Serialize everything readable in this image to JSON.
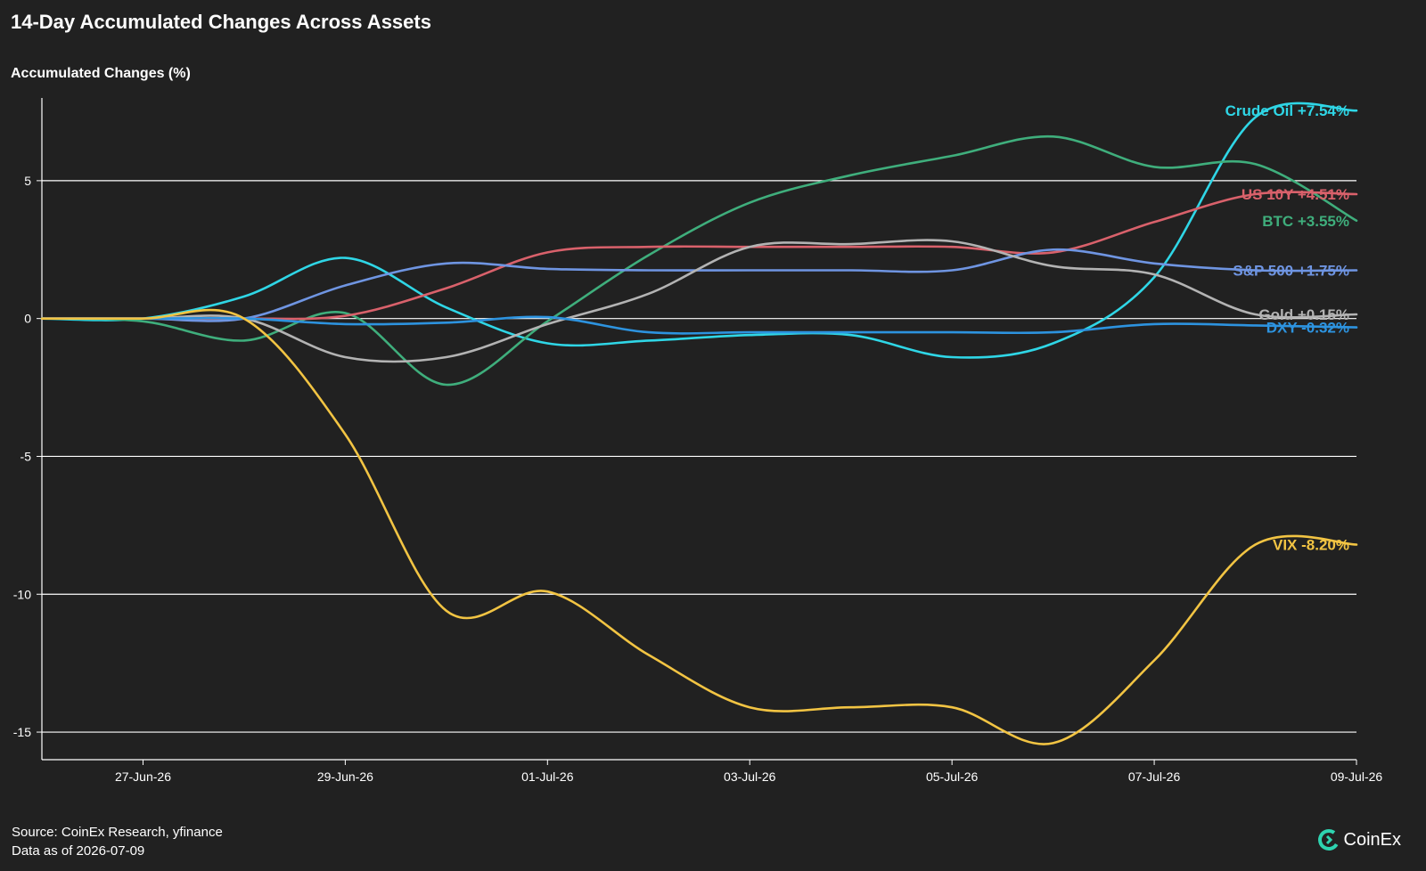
{
  "title": "14-Day Accumulated Changes Across Assets",
  "footer": {
    "source": "Source: CoinEx Research, yfinance",
    "asof": "Data as of 2026-07-09"
  },
  "brand": {
    "name": "CoinEx",
    "color": "#2ED3B0",
    "icon": "coinex-logo-icon"
  },
  "colors": {
    "background": "#212121",
    "grid": "#ffffff",
    "axis": "#ffffff"
  },
  "chart_data": {
    "type": "line",
    "ylabel": "Accumulated Changes (%)",
    "xlabel": "",
    "x_dates": [
      "26-Jun-26",
      "27-Jun-26",
      "28-Jun-26",
      "29-Jun-26",
      "30-Jun-26",
      "01-Jul-26",
      "02-Jul-26",
      "03-Jul-26",
      "04-Jul-26",
      "05-Jul-26",
      "06-Jul-26",
      "07-Jul-26",
      "08-Jul-26",
      "09-Jul-26"
    ],
    "x_ticks": [
      "27-Jun-26",
      "29-Jun-26",
      "01-Jul-26",
      "03-Jul-26",
      "05-Jul-26",
      "07-Jul-26",
      "09-Jul-26"
    ],
    "y_ticks": [
      5,
      0,
      -5,
      -10,
      -15
    ],
    "ylim": [
      -16,
      8
    ],
    "grid": "horizontal",
    "legend": "end-of-line labels",
    "series": [
      {
        "name": "Crude Oil",
        "label": "Crude Oil +7.54%",
        "color": "#2FD6E6",
        "values": [
          0,
          0,
          0.8,
          2.2,
          0.4,
          -0.9,
          -0.8,
          -0.6,
          -0.6,
          -1.4,
          -0.9,
          1.5,
          7.3,
          7.54
        ]
      },
      {
        "name": "BTC",
        "label": "BTC +3.55%",
        "color": "#3FAE7C",
        "values": [
          0,
          -0.1,
          -0.8,
          0.2,
          -2.4,
          -0.1,
          2.3,
          4.2,
          5.2,
          5.9,
          6.6,
          5.5,
          5.6,
          3.55
        ]
      },
      {
        "name": "US 10Y",
        "label": "US 10Y +4.51%",
        "color": "#D9616B",
        "values": [
          0,
          0,
          0,
          0.1,
          1.1,
          2.4,
          2.6,
          2.6,
          2.6,
          2.6,
          2.4,
          3.5,
          4.51,
          4.51
        ]
      },
      {
        "name": "S&P 500",
        "label": "S&P 500 +1.75%",
        "color": "#6F95E2",
        "values": [
          0,
          0,
          0,
          1.2,
          2.0,
          1.8,
          1.75,
          1.75,
          1.75,
          1.75,
          2.5,
          2.0,
          1.75,
          1.75
        ]
      },
      {
        "name": "Gold",
        "label": "Gold +0.15%",
        "color": "#B3B3B3",
        "values": [
          0,
          0,
          0,
          -1.4,
          -1.4,
          -0.2,
          0.9,
          2.6,
          2.7,
          2.8,
          1.9,
          1.6,
          0.15,
          0.15
        ]
      },
      {
        "name": "DXY",
        "label": "DXY -0.32%",
        "color": "#2D93DF",
        "values": [
          0,
          0,
          0,
          -0.2,
          -0.15,
          0.05,
          -0.5,
          -0.5,
          -0.5,
          -0.5,
          -0.5,
          -0.2,
          -0.25,
          -0.32
        ]
      },
      {
        "name": "VIX",
        "label": "VIX -8.20%",
        "color": "#F2C443",
        "values": [
          0,
          0,
          0,
          -4.2,
          -10.6,
          -9.9,
          -12.2,
          -14.1,
          -14.1,
          -14.1,
          -15.4,
          -12.4,
          -8.2,
          -8.2
        ]
      }
    ]
  }
}
